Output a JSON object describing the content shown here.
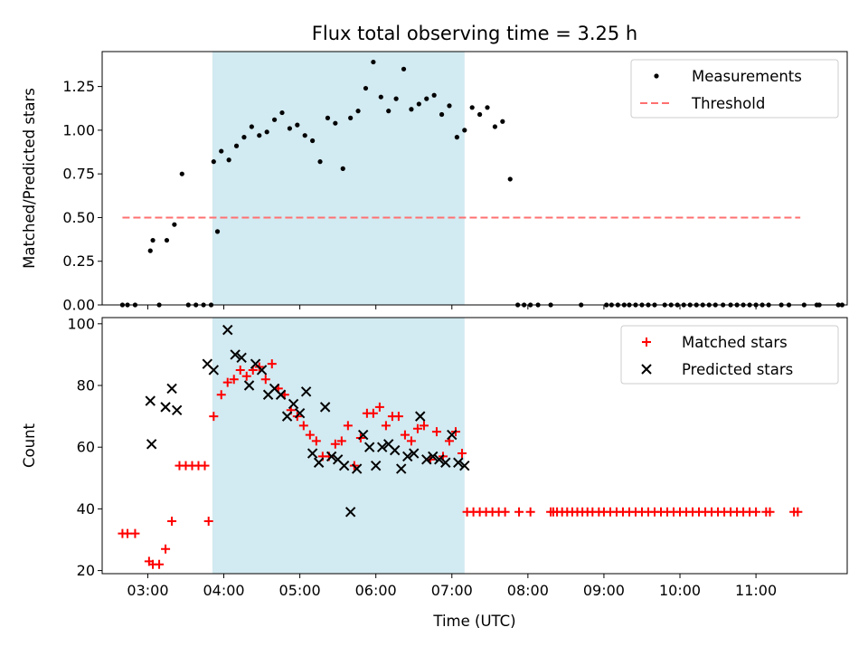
{
  "chart_data": [
    {
      "type": "scatter",
      "title": "Flux total observing time = 3.25 h",
      "xlabel": "",
      "ylabel": "Matched/Predicted stars",
      "xlim": [
        "02:24",
        "12:12"
      ],
      "ylim": [
        0,
        1.45
      ],
      "yticks": [
        "0.00",
        "0.25",
        "0.50",
        "0.75",
        "1.00",
        "1.25"
      ],
      "shaded_span": [
        "03:51",
        "07:10"
      ],
      "shade_color": "#add8e6",
      "legend": {
        "position": "top-right",
        "entries": [
          "Measurements",
          "Threshold"
        ]
      },
      "series": [
        {
          "name": "Measurements",
          "marker": "dot",
          "color": "#000000",
          "points": [
            [
              "02:40",
              0
            ],
            [
              "02:44",
              0
            ],
            [
              "02:50",
              0
            ],
            [
              "03:02",
              0.31
            ],
            [
              "03:04",
              0.37
            ],
            [
              "03:09",
              0
            ],
            [
              "03:15",
              0.37
            ],
            [
              "03:21",
              0.46
            ],
            [
              "03:27",
              0.75
            ],
            [
              "03:32",
              0
            ],
            [
              "03:38",
              0
            ],
            [
              "03:44",
              0
            ],
            [
              "03:50",
              0
            ],
            [
              "03:55",
              0.42
            ],
            [
              "03:52",
              0.82
            ],
            [
              "03:58",
              0.88
            ],
            [
              "04:04",
              0.83
            ],
            [
              "04:10",
              0.91
            ],
            [
              "04:16",
              0.96
            ],
            [
              "04:22",
              1.02
            ],
            [
              "04:28",
              0.97
            ],
            [
              "04:34",
              0.99
            ],
            [
              "04:40",
              1.06
            ],
            [
              "04:46",
              1.1
            ],
            [
              "04:52",
              1.01
            ],
            [
              "04:58",
              1.03
            ],
            [
              "05:04",
              0.97
            ],
            [
              "05:10",
              0.94
            ],
            [
              "05:16",
              0.82
            ],
            [
              "05:22",
              1.07
            ],
            [
              "05:28",
              1.04
            ],
            [
              "05:34",
              0.78
            ],
            [
              "05:40",
              1.07
            ],
            [
              "05:46",
              1.11
            ],
            [
              "05:52",
              1.24
            ],
            [
              "05:58",
              1.39
            ],
            [
              "06:04",
              1.19
            ],
            [
              "06:10",
              1.11
            ],
            [
              "06:16",
              1.18
            ],
            [
              "06:22",
              1.35
            ],
            [
              "06:28",
              1.12
            ],
            [
              "06:34",
              1.15
            ],
            [
              "06:40",
              1.18
            ],
            [
              "06:46",
              1.2
            ],
            [
              "06:52",
              1.09
            ],
            [
              "06:58",
              1.14
            ],
            [
              "07:04",
              0.96
            ],
            [
              "07:10",
              1.0
            ],
            [
              "07:16",
              1.13
            ],
            [
              "07:22",
              1.09
            ],
            [
              "07:28",
              1.13
            ],
            [
              "07:34",
              1.02
            ],
            [
              "07:40",
              1.05
            ],
            [
              "07:46",
              0.72
            ],
            [
              "07:52",
              0
            ],
            [
              "07:57",
              0
            ],
            [
              "08:02",
              0
            ],
            [
              "08:08",
              0
            ],
            [
              "08:18",
              0
            ],
            [
              "08:42",
              0
            ],
            [
              "09:02",
              0
            ],
            [
              "09:06",
              0
            ],
            [
              "09:11",
              0
            ],
            [
              "09:16",
              0
            ],
            [
              "09:20",
              0
            ],
            [
              "09:25",
              0
            ],
            [
              "09:30",
              0
            ],
            [
              "09:35",
              0
            ],
            [
              "09:40",
              0
            ],
            [
              "09:48",
              0
            ],
            [
              "09:53",
              0
            ],
            [
              "09:58",
              0
            ],
            [
              "10:03",
              0
            ],
            [
              "10:08",
              0
            ],
            [
              "10:13",
              0
            ],
            [
              "10:18",
              0
            ],
            [
              "10:23",
              0
            ],
            [
              "10:28",
              0
            ],
            [
              "10:34",
              0
            ],
            [
              "10:40",
              0
            ],
            [
              "10:45",
              0
            ],
            [
              "10:50",
              0
            ],
            [
              "10:55",
              0
            ],
            [
              "11:00",
              0
            ],
            [
              "11:05",
              0
            ],
            [
              "11:10",
              0
            ],
            [
              "11:20",
              0
            ],
            [
              "11:26",
              0
            ],
            [
              "11:38",
              0
            ],
            [
              "11:48",
              0
            ],
            [
              "11:50",
              0
            ],
            [
              "12:05",
              0
            ],
            [
              "12:08",
              0
            ]
          ]
        },
        {
          "name": "Threshold",
          "line": "dashed",
          "color": "#ff7070",
          "x": [
            "02:40",
            "11:35"
          ],
          "y": [
            0.5,
            0.5
          ]
        }
      ]
    },
    {
      "type": "scatter",
      "title": "",
      "xlabel": "Time (UTC)",
      "ylabel": "Count",
      "xlim": [
        "02:24",
        "12:12"
      ],
      "ylim": [
        19,
        102
      ],
      "yticks": [
        "20",
        "40",
        "60",
        "80",
        "100"
      ],
      "xticks": [
        "03:00",
        "04:00",
        "05:00",
        "06:00",
        "07:00",
        "08:00",
        "09:00",
        "10:00",
        "11:00"
      ],
      "shaded_span": [
        "03:51",
        "07:10"
      ],
      "shade_color": "#add8e6",
      "legend": {
        "position": "top-right",
        "entries": [
          "Matched stars",
          "Predicted stars"
        ]
      },
      "series": [
        {
          "name": "Matched stars",
          "marker": "plus",
          "color": "#ff0000",
          "points": [
            [
              "02:40",
              32
            ],
            [
              "02:44",
              32
            ],
            [
              "02:50",
              32
            ],
            [
              "03:01",
              23
            ],
            [
              "03:04",
              22
            ],
            [
              "03:09",
              22
            ],
            [
              "03:14",
              27
            ],
            [
              "03:19",
              36
            ],
            [
              "03:25",
              54
            ],
            [
              "03:30",
              54
            ],
            [
              "03:35",
              54
            ],
            [
              "03:40",
              54
            ],
            [
              "03:45",
              54
            ],
            [
              "03:48",
              36
            ],
            [
              "03:52",
              70
            ],
            [
              "03:58",
              77
            ],
            [
              "04:03",
              81
            ],
            [
              "04:08",
              82
            ],
            [
              "04:13",
              85
            ],
            [
              "04:18",
              83
            ],
            [
              "04:23",
              85
            ],
            [
              "04:28",
              86
            ],
            [
              "04:33",
              82
            ],
            [
              "04:38",
              87
            ],
            [
              "04:43",
              79
            ],
            [
              "04:48",
              77
            ],
            [
              "04:53",
              72
            ],
            [
              "04:58",
              70
            ],
            [
              "05:03",
              67
            ],
            [
              "05:08",
              64
            ],
            [
              "05:13",
              62
            ],
            [
              "05:18",
              57
            ],
            [
              "05:23",
              57
            ],
            [
              "05:28",
              61
            ],
            [
              "05:33",
              62
            ],
            [
              "05:38",
              67
            ],
            [
              "05:43",
              54
            ],
            [
              "05:48",
              63
            ],
            [
              "05:53",
              71
            ],
            [
              "05:58",
              71
            ],
            [
              "06:03",
              73
            ],
            [
              "06:08",
              67
            ],
            [
              "06:13",
              70
            ],
            [
              "06:18",
              70
            ],
            [
              "06:23",
              64
            ],
            [
              "06:28",
              62
            ],
            [
              "06:33",
              66
            ],
            [
              "06:38",
              67
            ],
            [
              "06:43",
              56
            ],
            [
              "06:48",
              65
            ],
            [
              "06:53",
              57
            ],
            [
              "06:58",
              62
            ],
            [
              "07:03",
              65
            ],
            [
              "07:08",
              58
            ],
            [
              "07:12",
              39
            ],
            [
              "07:17",
              39
            ],
            [
              "07:22",
              39
            ],
            [
              "07:27",
              39
            ],
            [
              "07:32",
              39
            ],
            [
              "07:37",
              39
            ],
            [
              "07:42",
              39
            ],
            [
              "07:53",
              39
            ],
            [
              "08:02",
              39
            ],
            [
              "08:18",
              39
            ],
            [
              "08:20",
              39
            ],
            [
              "08:23",
              39
            ],
            [
              "08:27",
              39
            ],
            [
              "08:31",
              39
            ],
            [
              "08:35",
              39
            ],
            [
              "08:39",
              39
            ],
            [
              "08:43",
              39
            ],
            [
              "08:47",
              39
            ],
            [
              "08:51",
              39
            ],
            [
              "08:56",
              39
            ],
            [
              "09:00",
              39
            ],
            [
              "09:05",
              39
            ],
            [
              "09:10",
              39
            ],
            [
              "09:15",
              39
            ],
            [
              "09:20",
              39
            ],
            [
              "09:25",
              39
            ],
            [
              "09:30",
              39
            ],
            [
              "09:35",
              39
            ],
            [
              "09:40",
              39
            ],
            [
              "09:45",
              39
            ],
            [
              "09:50",
              39
            ],
            [
              "09:55",
              39
            ],
            [
              "10:00",
              39
            ],
            [
              "10:05",
              39
            ],
            [
              "10:10",
              39
            ],
            [
              "10:15",
              39
            ],
            [
              "10:20",
              39
            ],
            [
              "10:25",
              39
            ],
            [
              "10:30",
              39
            ],
            [
              "10:35",
              39
            ],
            [
              "10:40",
              39
            ],
            [
              "10:45",
              39
            ],
            [
              "10:50",
              39
            ],
            [
              "10:55",
              39
            ],
            [
              "11:00",
              39
            ],
            [
              "11:08",
              39
            ],
            [
              "11:11",
              39
            ],
            [
              "11:30",
              39
            ],
            [
              "11:33",
              39
            ]
          ]
        },
        {
          "name": "Predicted stars",
          "marker": "x",
          "color": "#000000",
          "points": [
            [
              "03:02",
              75
            ],
            [
              "03:03",
              61
            ],
            [
              "03:14",
              73
            ],
            [
              "03:19",
              79
            ],
            [
              "03:23",
              72
            ],
            [
              "03:47",
              87
            ],
            [
              "03:52",
              85
            ],
            [
              "04:03",
              98
            ],
            [
              "04:09",
              90
            ],
            [
              "04:14",
              89
            ],
            [
              "04:20",
              80
            ],
            [
              "04:25",
              87
            ],
            [
              "04:30",
              85
            ],
            [
              "04:35",
              77
            ],
            [
              "04:40",
              79
            ],
            [
              "04:45",
              77
            ],
            [
              "04:50",
              70
            ],
            [
              "04:55",
              74
            ],
            [
              "05:00",
              71
            ],
            [
              "05:05",
              78
            ],
            [
              "05:10",
              58
            ],
            [
              "05:15",
              55
            ],
            [
              "05:20",
              73
            ],
            [
              "05:25",
              57
            ],
            [
              "05:30",
              56
            ],
            [
              "05:35",
              54
            ],
            [
              "05:40",
              39
            ],
            [
              "05:45",
              53
            ],
            [
              "05:50",
              64
            ],
            [
              "05:55",
              60
            ],
            [
              "06:00",
              54
            ],
            [
              "06:05",
              60
            ],
            [
              "06:10",
              61
            ],
            [
              "06:15",
              59
            ],
            [
              "06:20",
              53
            ],
            [
              "06:25",
              57
            ],
            [
              "06:30",
              58
            ],
            [
              "06:35",
              70
            ],
            [
              "06:40",
              56
            ],
            [
              "06:45",
              57
            ],
            [
              "06:50",
              56
            ],
            [
              "06:55",
              55
            ],
            [
              "07:00",
              64
            ],
            [
              "07:05",
              55
            ],
            [
              "07:10",
              54
            ]
          ]
        }
      ]
    }
  ]
}
